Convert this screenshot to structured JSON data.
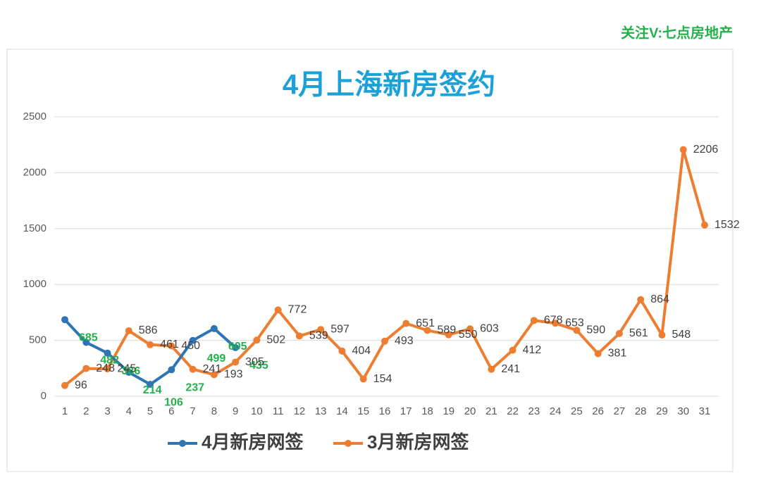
{
  "chart_data": {
    "type": "line",
    "watermark": "关注V:七点房地产",
    "title": "4月上海新房签约",
    "categories": [
      1,
      2,
      3,
      4,
      5,
      6,
      7,
      8,
      9,
      10,
      11,
      12,
      13,
      14,
      15,
      16,
      17,
      18,
      19,
      20,
      21,
      22,
      23,
      24,
      25,
      26,
      27,
      28,
      29,
      30,
      31
    ],
    "series": [
      {
        "name": "4月新房网签",
        "color": "#2e75b6",
        "label_color": "#22b14c",
        "values": [
          685,
          482,
          386,
          214,
          106,
          237,
          499,
          605,
          435,
          null,
          null,
          null,
          null,
          null,
          null,
          null,
          null,
          null,
          null,
          null,
          null,
          null,
          null,
          null,
          null,
          null,
          null,
          null,
          null,
          null,
          null
        ]
      },
      {
        "name": "3月新房网签",
        "color": "#ed7d31",
        "label_color": "#404040",
        "values": [
          96,
          248,
          245,
          586,
          461,
          450,
          241,
          193,
          305,
          502,
          772,
          539,
          597,
          404,
          154,
          493,
          651,
          589,
          550,
          603,
          241,
          412,
          678,
          653,
          590,
          381,
          561,
          864,
          548,
          2206,
          1532
        ]
      }
    ],
    "ylim": [
      0,
      2500
    ],
    "yticks": [
      0,
      500,
      1000,
      1500,
      2000,
      2500
    ],
    "grid": true
  }
}
